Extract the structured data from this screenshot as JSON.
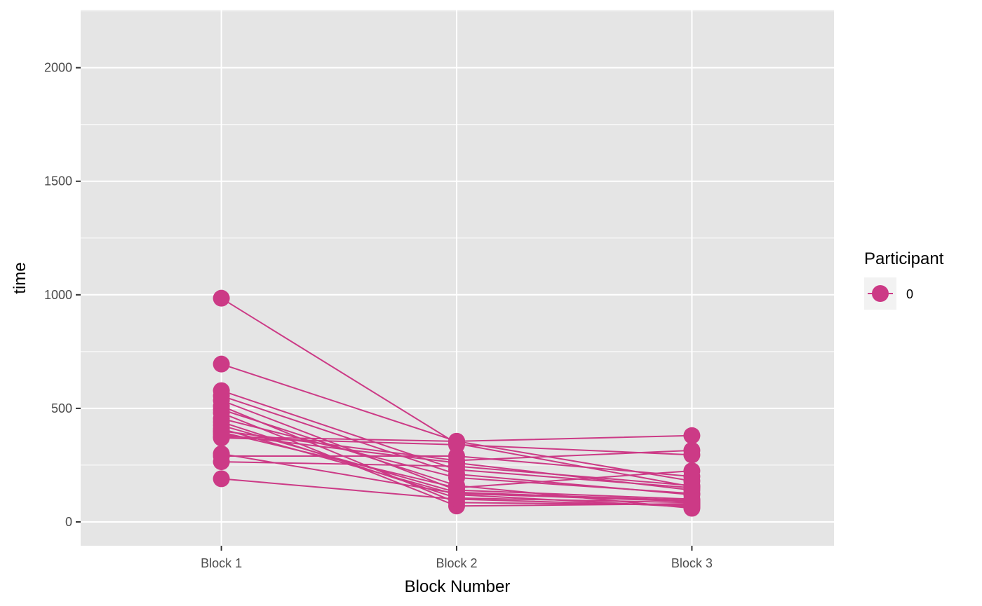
{
  "chart_data": {
    "type": "line",
    "xlabel": "Block Number",
    "ylabel": "time",
    "categories": [
      "Block 1",
      "Block 2",
      "Block 3"
    ],
    "ylim": [
      -105,
      2255
    ],
    "y_ticks": [
      0,
      500,
      1000,
      1500,
      2000
    ],
    "y_tick_labels": [
      "0",
      "500",
      "1000",
      "1500",
      "2000"
    ],
    "grid": true,
    "legend": {
      "title": "Participant",
      "position": "right",
      "entries": [
        {
          "label": "0",
          "color": "#CC3A86"
        }
      ]
    },
    "color": "#CC3A86",
    "lines": [
      [
        985,
        345,
        155
      ],
      [
        695,
        355,
        180
      ],
      [
        578,
        230,
        150
      ],
      [
        555,
        210,
        120
      ],
      [
        535,
        140,
        100
      ],
      [
        510,
        85,
        75
      ],
      [
        495,
        160,
        60
      ],
      [
        480,
        70,
        80
      ],
      [
        455,
        195,
        125
      ],
      [
        440,
        105,
        85
      ],
      [
        425,
        130,
        95
      ],
      [
        410,
        120,
        65
      ],
      [
        400,
        270,
        315
      ],
      [
        395,
        150,
        225
      ],
      [
        385,
        260,
        140
      ],
      [
        375,
        355,
        380
      ],
      [
        370,
        340,
        295
      ],
      [
        300,
        125,
        90
      ],
      [
        290,
        290,
        200
      ],
      [
        265,
        245,
        160
      ],
      [
        190,
        100,
        70
      ]
    ]
  }
}
